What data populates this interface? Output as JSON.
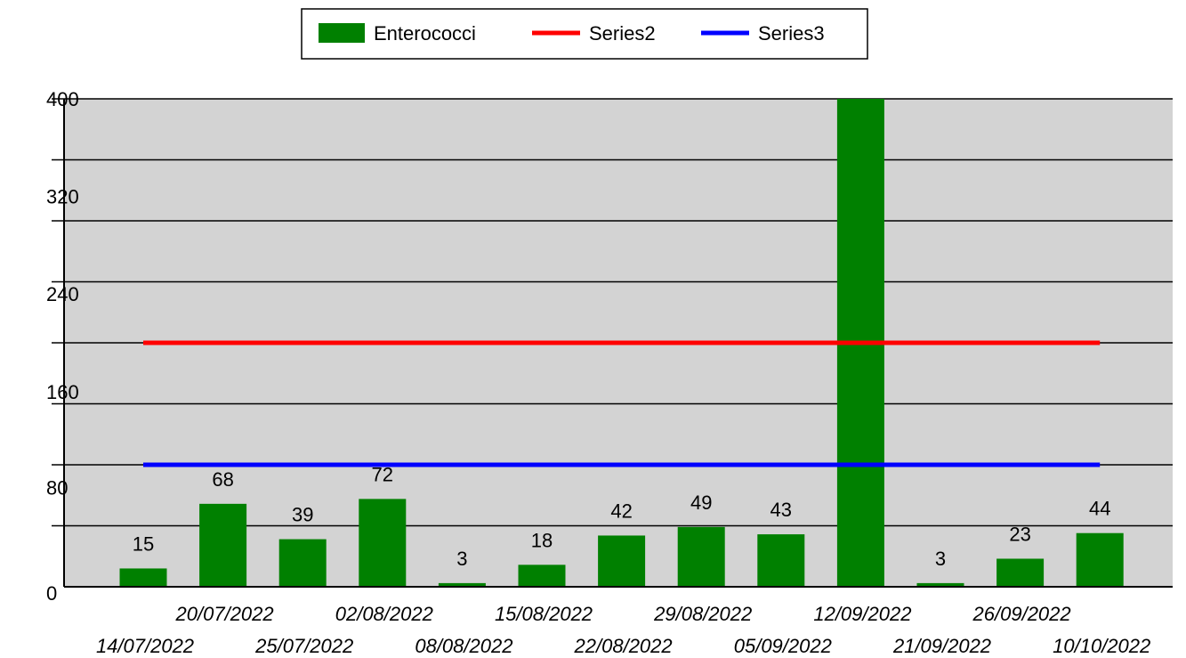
{
  "chart_data": {
    "type": "bar",
    "categories": [
      "14/07/2022",
      "20/07/2022",
      "25/07/2022",
      "02/08/2022",
      "08/08/2022",
      "15/08/2022",
      "22/08/2022",
      "29/08/2022",
      "05/09/2022",
      "12/09/2022",
      "21/09/2022",
      "26/09/2022",
      "10/10/2022"
    ],
    "series": [
      {
        "name": "Enterococci",
        "type": "bar",
        "color": "#008000",
        "values": [
          15,
          68,
          39,
          72,
          3,
          18,
          42,
          49,
          43,
          400,
          3,
          23,
          44
        ],
        "data_labels": [
          "15",
          "68",
          "39",
          "72",
          "3",
          "18",
          "42",
          "49",
          "43",
          "",
          "3",
          "23",
          "44"
        ]
      },
      {
        "name": "Series2",
        "type": "line",
        "color": "#ff0000",
        "values": [
          200,
          200,
          200,
          200,
          200,
          200,
          200,
          200,
          200,
          200,
          200,
          200,
          200
        ]
      },
      {
        "name": "Series3",
        "type": "line",
        "color": "#0000ff",
        "values": [
          100,
          100,
          100,
          100,
          100,
          100,
          100,
          100,
          100,
          100,
          100,
          100,
          100
        ]
      }
    ],
    "ylim": [
      0,
      400
    ],
    "y_ticks": [
      "0",
      "80",
      "160",
      "240",
      "320",
      "400"
    ],
    "gridlines_at": [
      50,
      100,
      150,
      200,
      250,
      300,
      350,
      400
    ],
    "grid": true,
    "plot_background": "#d3d3d3",
    "legend_position": "top-center",
    "title": "",
    "xlabel": "",
    "ylabel": ""
  }
}
